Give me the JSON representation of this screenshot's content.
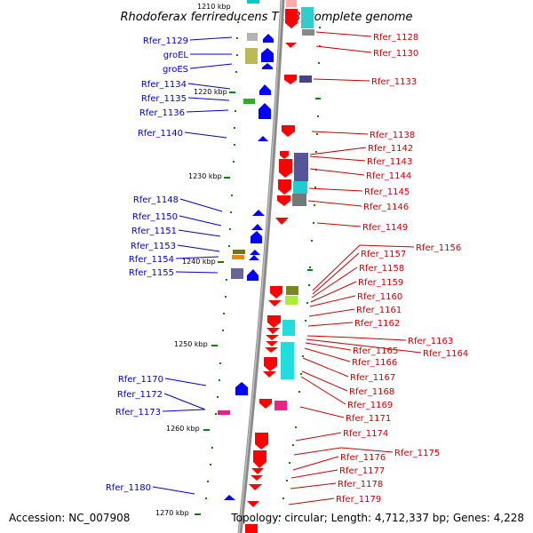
{
  "title": "Rhodoferax ferrireducens T118, complete genome",
  "accession": "Accession: NC_007908",
  "topology": "Topology: circular; Length: 4,712,337 bp; Genes: 4,228",
  "colors": {
    "forward_gene": "#0000ff",
    "reverse_gene": "#ff0000",
    "backbone": "#888888",
    "tick": "#007700",
    "left_label": "#0000cc",
    "right_label": "#cc0000"
  },
  "scale": {
    "top_label": "1210 kbp",
    "ticks": [
      "1220 kbp",
      "1230 kbp",
      "1240 kbp",
      "1250 kbp",
      "1260 kbp",
      "1270 kbp"
    ]
  },
  "left_labels": [
    "Rfer_1129",
    "groEL",
    "groES",
    "Rfer_1134",
    "Rfer_1135",
    "Rfer_1136",
    "Rfer_1140",
    "Rfer_1148",
    "Rfer_1150",
    "Rfer_1151",
    "Rfer_1153",
    "Rfer_1154",
    "Rfer_1155",
    "Rfer_1170",
    "Rfer_1172",
    "Rfer_1173",
    "Rfer_1180"
  ],
  "right_labels": [
    "Rfer_1128",
    "Rfer_1130",
    "Rfer_1133",
    "Rfer_1138",
    "Rfer_1142",
    "Rfer_1143",
    "Rfer_1144",
    "Rfer_1145",
    "Rfer_1146",
    "Rfer_1149",
    "Rfer_1156",
    "Rfer_1157",
    "Rfer_1158",
    "Rfer_1159",
    "Rfer_1160",
    "Rfer_1161",
    "Rfer_1162",
    "Rfer_1163",
    "Rfer_1164",
    "Rfer_1165",
    "Rfer_1166",
    "Rfer_1167",
    "Rfer_1168",
    "Rfer_1169",
    "Rfer_1171",
    "Rfer_1174",
    "Rfer_1175",
    "Rfer_1176",
    "Rfer_1177",
    "Rfer_1178",
    "Rfer_1179"
  ]
}
